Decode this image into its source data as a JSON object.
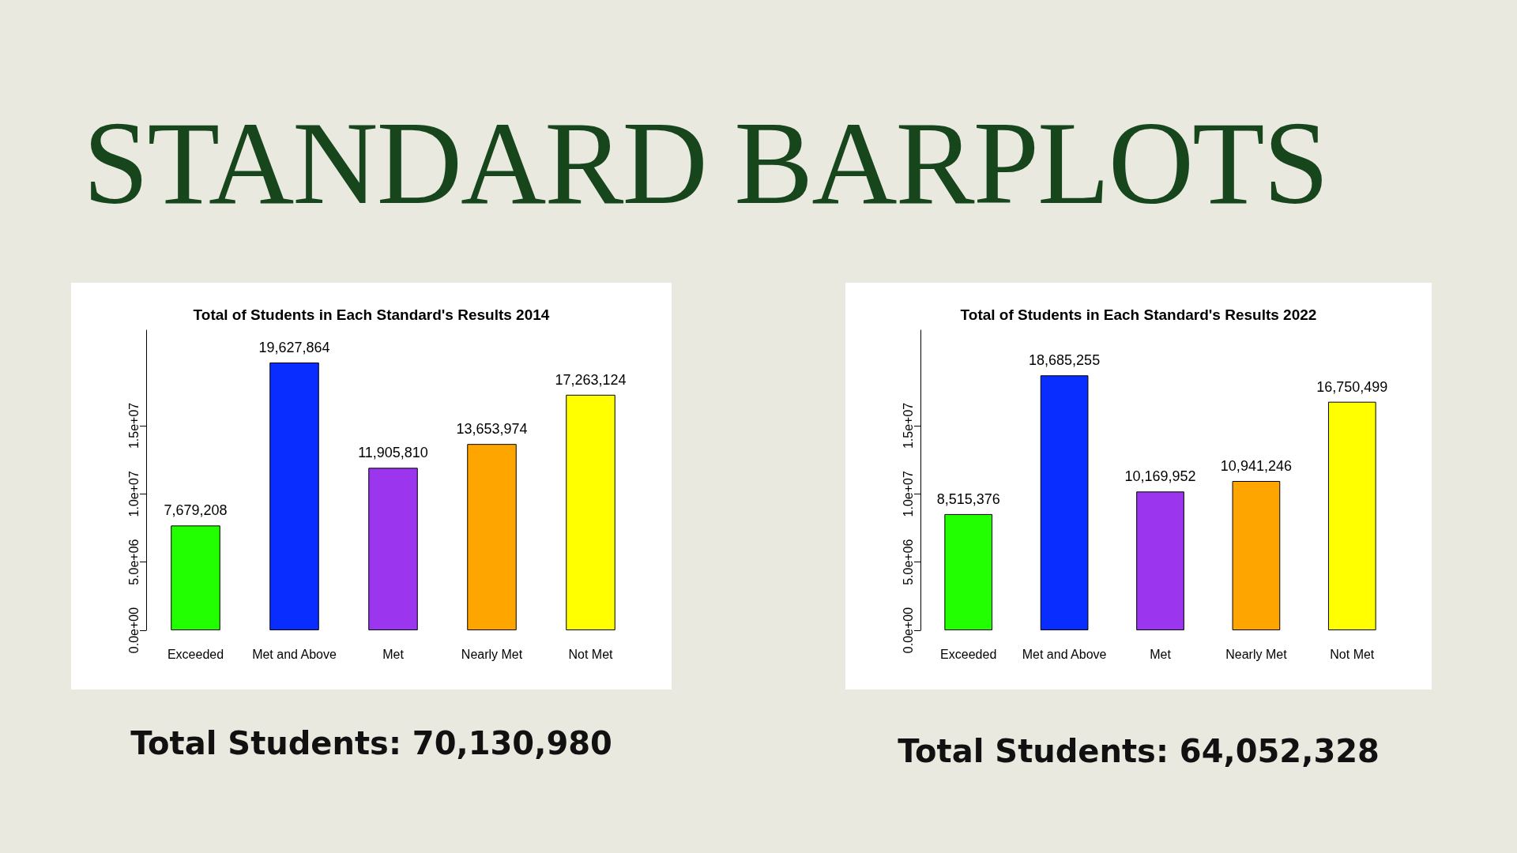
{
  "chart_data": [
    {
      "type": "bar",
      "title": "Total of Students in Each Standard's Results 2014",
      "categories": [
        "Exceeded",
        "Met and Above",
        "Met",
        "Nearly Met",
        "Not Met"
      ],
      "values": [
        7679208,
        19627864,
        11905810,
        13653974,
        17263124
      ],
      "value_labels": [
        "7,679,208",
        "19,627,864",
        "11,905,810",
        "13,653,974",
        "17,263,124"
      ],
      "colors": [
        "#22ff00",
        "#0a2dff",
        "#9b35ee",
        "#ffa500",
        "#ffff00"
      ],
      "ylim": [
        0,
        22000000
      ],
      "yticks": [
        {
          "value": 0,
          "label": "0.0e+00"
        },
        {
          "value": 5000000,
          "label": "5.0e+06"
        },
        {
          "value": 10000000,
          "label": "1.0e+07"
        },
        {
          "value": 15000000,
          "label": "1.5e+07"
        }
      ],
      "annotations": [
        "STANDARD BARPLOTS",
        "Total Students: 70,130,980"
      ]
    },
    {
      "type": "bar",
      "title": "Total of Students in Each Standard's Results 2022",
      "categories": [
        "Exceeded",
        "Met and Above",
        "Met",
        "Nearly Met",
        "Not Met"
      ],
      "values": [
        8515376,
        18685255,
        10169952,
        10941246,
        16750499
      ],
      "value_labels": [
        "8,515,376",
        "18,685,255",
        "10,169,952",
        "10,941,246",
        "16,750,499"
      ],
      "colors": [
        "#22ff00",
        "#0a2dff",
        "#9b35ee",
        "#ffa500",
        "#ffff00"
      ],
      "ylim": [
        0,
        22000000
      ],
      "yticks": [
        {
          "value": 0,
          "label": "0.0e+00"
        },
        {
          "value": 5000000,
          "label": "5.0e+06"
        },
        {
          "value": 10000000,
          "label": "1.0e+07"
        },
        {
          "value": 15000000,
          "label": "1.5e+07"
        }
      ],
      "annotations": [
        "Total Students: 64,052,328"
      ]
    }
  ]
}
